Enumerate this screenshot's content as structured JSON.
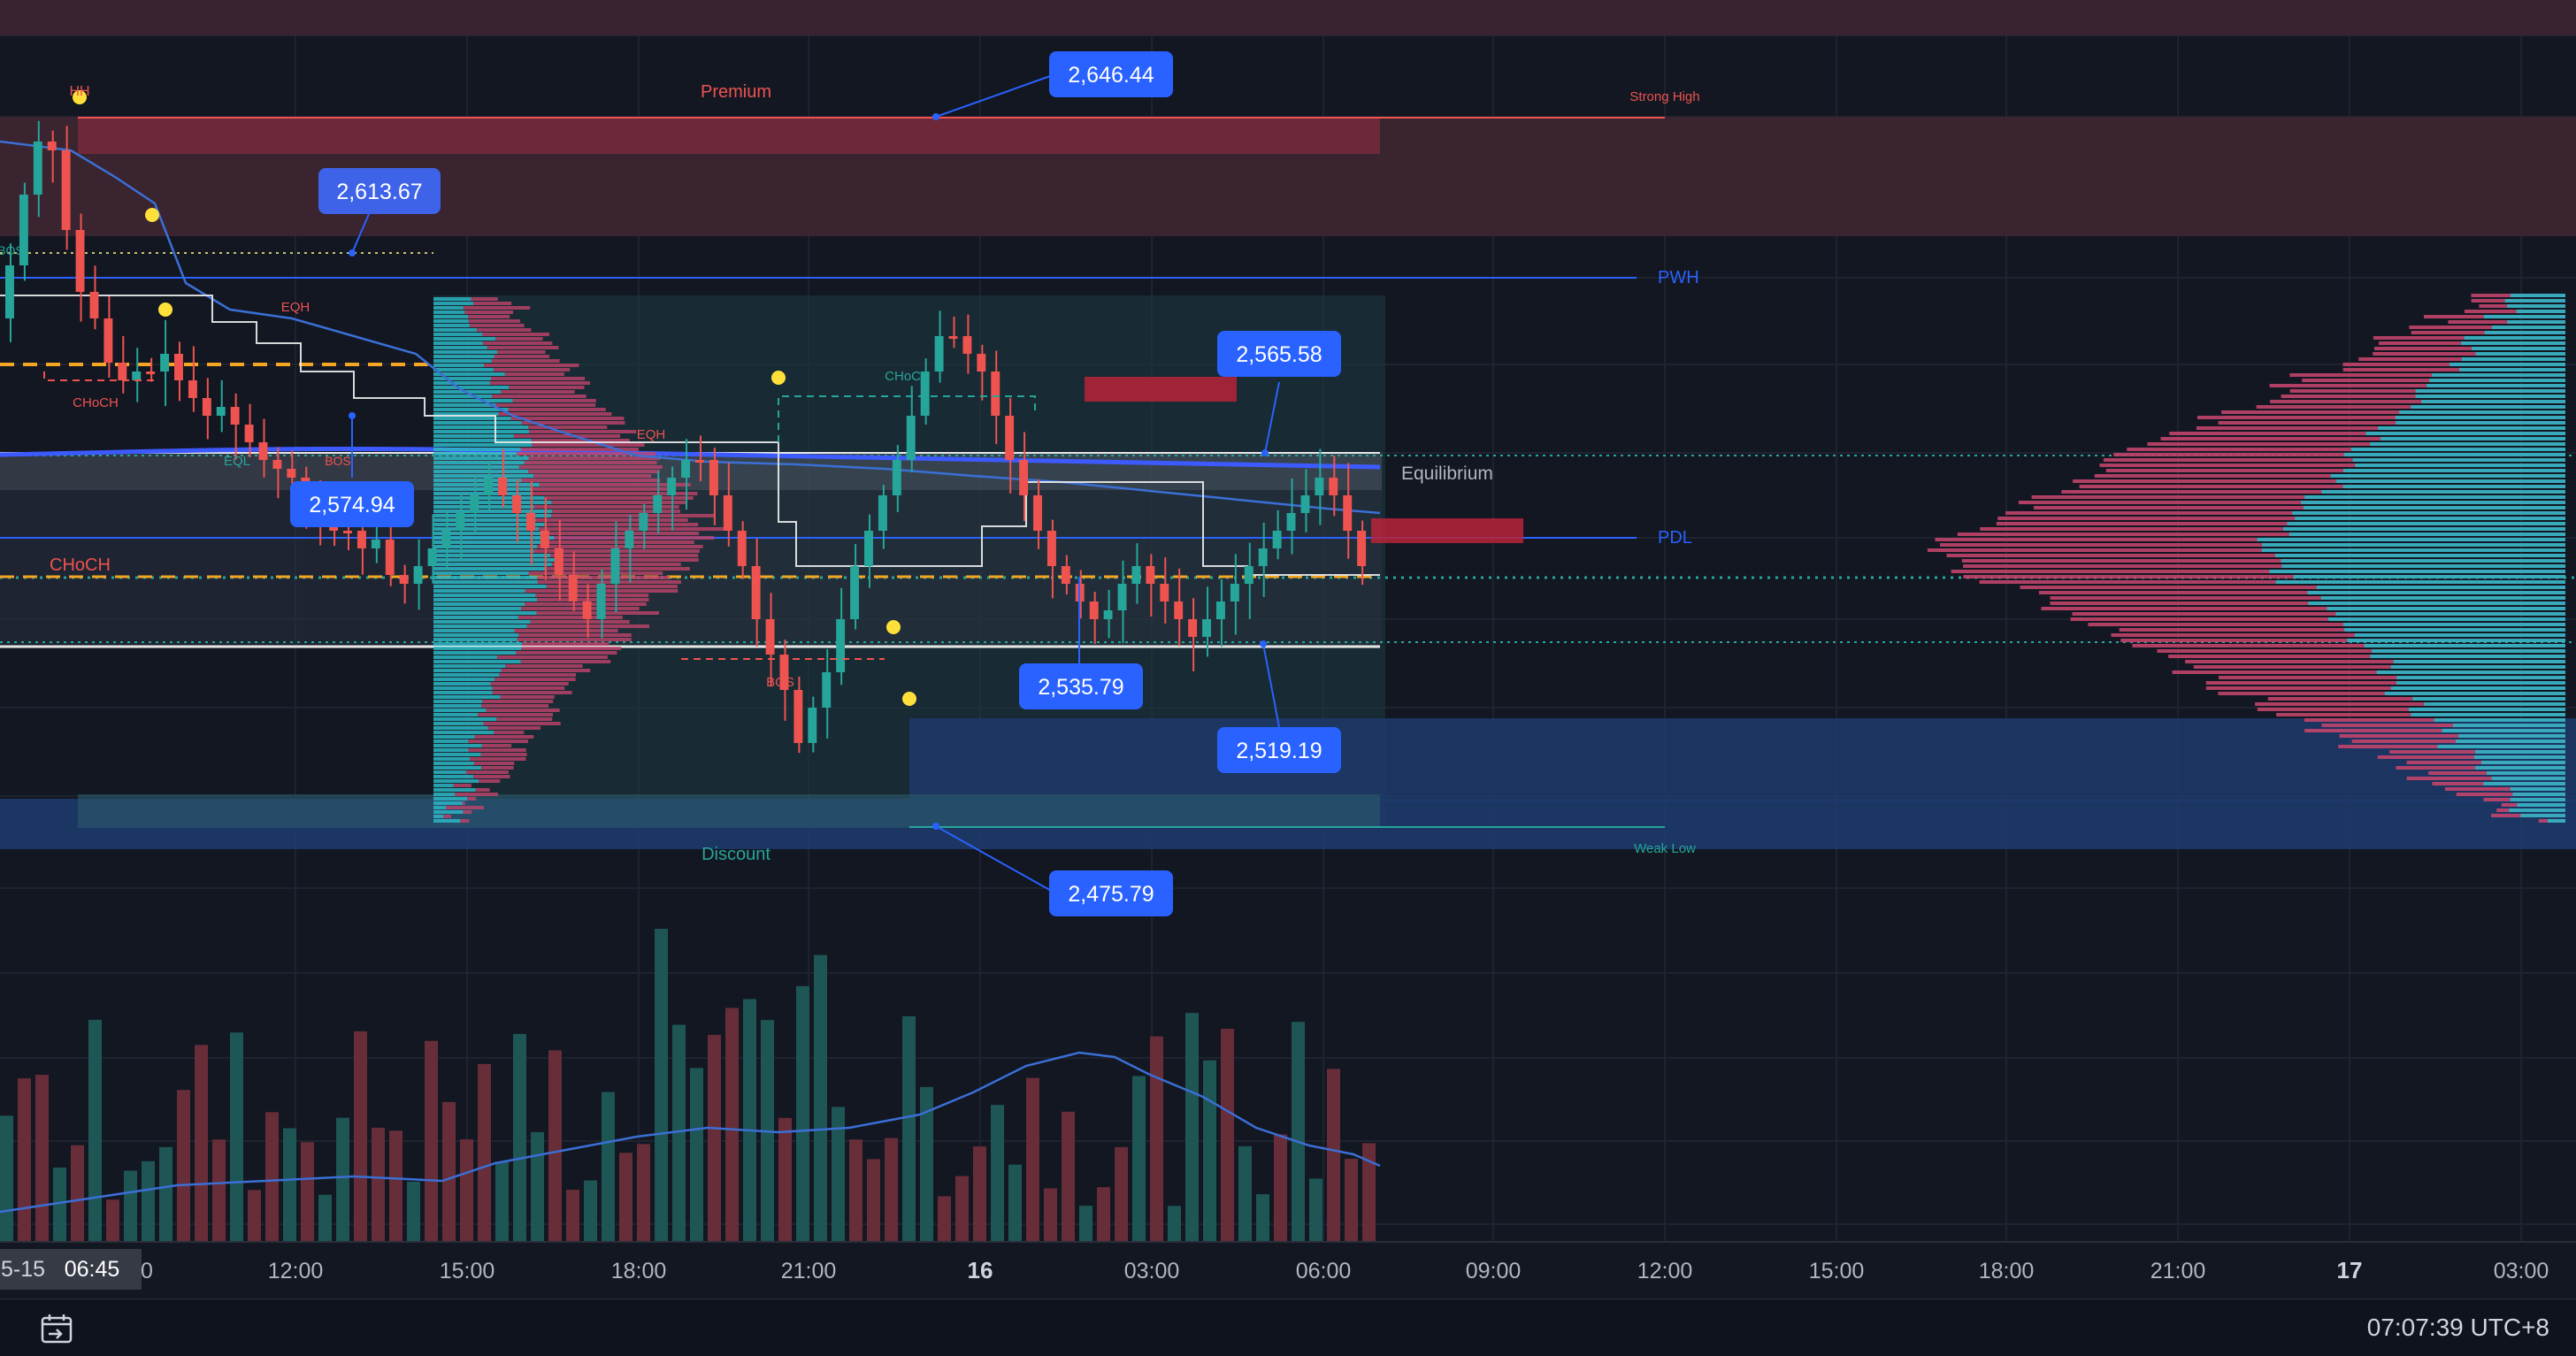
{
  "colors": {
    "background": "#131722",
    "bull": "#26a69a",
    "bear": "#ef5350",
    "label_bg": "#2962ff",
    "premium_zone": "#5b2a35",
    "discount_zone": "#1e3a6b",
    "vwap": "#4a78e8",
    "profile_bear": "#c2446b",
    "profile_bull": "#2bb6c4"
  },
  "price_labels": {
    "p1": "2,646.44",
    "p2": "2,613.67",
    "p3": "2,565.58",
    "p4": "2,574.94",
    "p5": "2,535.79",
    "p6": "2,519.19",
    "p7": "2,475.79"
  },
  "annotations": {
    "premium": "Premium",
    "discount": "Discount",
    "equilibrium": "Equilibrium",
    "strong_high": "Strong High",
    "weak_low": "Weak Low",
    "pwh": "PWH",
    "pdl": "PDL",
    "choch_large": "CHoCH",
    "choch_1": "CHoCH",
    "choch_2": "CHoCH",
    "eqh_1": "EQH",
    "eqh_2": "EQH",
    "eql": "EQL",
    "bos_1": "BOS",
    "bos_2": "BOS",
    "bos_3": "BOS",
    "hh": "HH"
  },
  "time_axis": {
    "date_label": "5-15",
    "cursor_time": "06:45",
    "ticks": [
      "0",
      "12:00",
      "15:00",
      "18:00",
      "21:00",
      "16",
      "03:00",
      "06:00",
      "09:00",
      "12:00",
      "15:00",
      "18:00",
      "21:00",
      "17",
      "03:00"
    ]
  },
  "status_bar": {
    "clock": "07:07:39 UTC+8",
    "goto_date_icon": "calendar-goto-icon"
  }
}
